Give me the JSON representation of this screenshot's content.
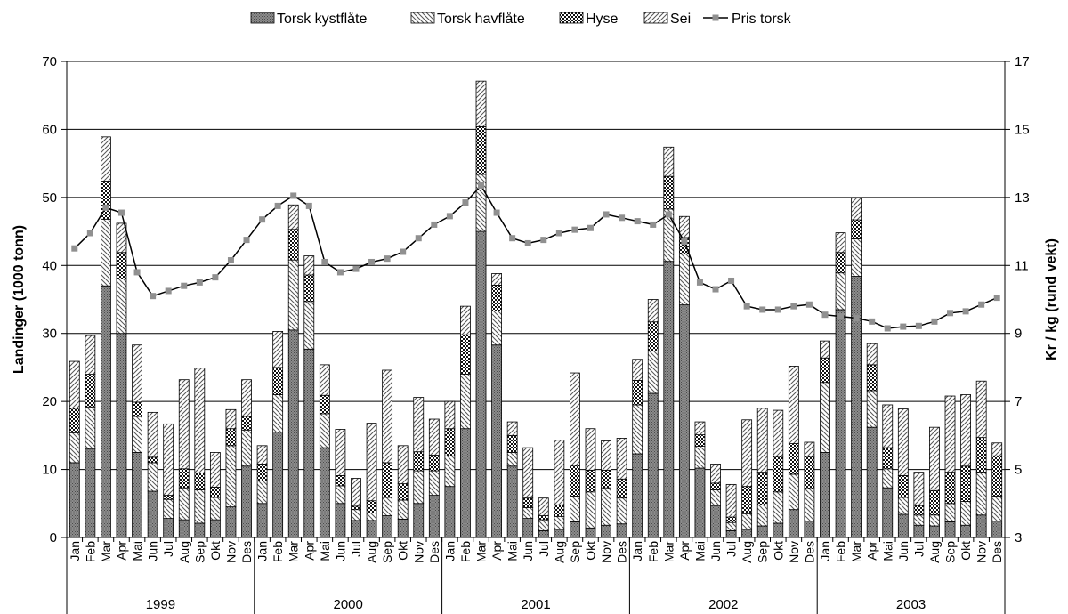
{
  "chart_data": {
    "type": "bar",
    "stacked": true,
    "title": "",
    "ylabel": "Landinger (1000 tonn)",
    "y2label": "Kr / kg (rund vekt)",
    "ylim": [
      0,
      70
    ],
    "y2lim": [
      3,
      17
    ],
    "yticks": [
      "0",
      "10",
      "20",
      "30",
      "40",
      "50",
      "60",
      "70"
    ],
    "y2ticks": [
      "3",
      "5",
      "7",
      "9",
      "11",
      "13",
      "15",
      "17"
    ],
    "grid": true,
    "legend_position": "top",
    "years": [
      "1999",
      "2000",
      "2001",
      "2002",
      "2003"
    ],
    "months": [
      "Jan",
      "Feb",
      "Mar",
      "Apr",
      "Mai",
      "Jun",
      "Jul",
      "Aug",
      "Sep",
      "Okt",
      "Nov",
      "Des"
    ],
    "series": [
      {
        "name": "Torsk kystflåte",
        "pattern": "dots",
        "values": [
          11,
          13,
          37,
          30,
          12.5,
          6.8,
          2.8,
          2.6,
          2.1,
          2.6,
          4.5,
          10.5,
          5,
          15.5,
          30.5,
          27.7,
          13.2,
          5,
          2.5,
          2.5,
          3.2,
          2.7,
          5,
          6.2,
          7.5,
          16,
          45,
          28.3,
          10.5,
          2.8,
          1,
          1.2,
          2.3,
          1.4,
          1.8,
          2,
          12.3,
          21.2,
          40.6,
          34.2,
          10.2,
          4.7,
          1,
          1.2,
          1.7,
          2.1,
          4.1,
          2.4,
          12.5,
          33.5,
          38.4,
          16.2,
          7.3,
          3.4,
          1.8,
          1.7,
          2.3,
          1.8,
          3.3,
          2.4
        ]
      },
      {
        "name": "Torsk havflåte",
        "pattern": "hatch-down",
        "values": [
          4.4,
          6.2,
          9.8,
          8,
          5.3,
          4.2,
          2.8,
          4.7,
          4.9,
          3.3,
          9,
          5.3,
          3.3,
          5.5,
          10.3,
          7,
          5,
          2.6,
          1.6,
          1.1,
          2.7,
          2.8,
          4.8,
          3.6,
          4.5,
          8,
          8.4,
          5,
          2,
          1.6,
          1.6,
          1.9,
          3.8,
          5.3,
          5.5,
          3.8,
          7.2,
          6.2,
          7.7,
          7.5,
          3.2,
          2.3,
          1.2,
          2.3,
          3.1,
          4.6,
          5.2,
          4.8,
          10.3,
          5.4,
          5.5,
          5.4,
          2.8,
          2.5,
          1.5,
          1.6,
          2.7,
          3.5,
          6.3,
          3.7
        ]
      },
      {
        "name": "Hyse",
        "pattern": "checker",
        "values": [
          3.6,
          4.8,
          5.6,
          3.9,
          2.1,
          0.8,
          0.6,
          2.8,
          2.5,
          1.5,
          2.5,
          2,
          2.5,
          4,
          4.5,
          3.9,
          2.7,
          1.5,
          0.5,
          1.8,
          5.1,
          2.4,
          2.8,
          2.3,
          4,
          5.8,
          7,
          3.8,
          2.5,
          1.4,
          0.6,
          1.7,
          4.5,
          3.2,
          2.6,
          2.8,
          3.6,
          4.3,
          4.8,
          2.4,
          1.7,
          1,
          0.8,
          4,
          4.8,
          5.2,
          4.5,
          4.7,
          3.6,
          3,
          2.8,
          3.8,
          3.1,
          3.2,
          1.4,
          3.6,
          4.6,
          5.2,
          5.1,
          5.9
        ]
      },
      {
        "name": "Sei",
        "pattern": "hatch-up",
        "values": [
          6.9,
          5.7,
          6.5,
          4.3,
          8.4,
          6.6,
          10.5,
          13.1,
          15.4,
          5.1,
          2.8,
          5.4,
          2.7,
          5.3,
          3.6,
          2.8,
          4.5,
          6.8,
          4.1,
          11.4,
          13.6,
          5.6,
          8,
          5.3,
          4,
          4.2,
          6.7,
          1.7,
          2,
          7.4,
          2.6,
          9.5,
          13.6,
          6.1,
          4.3,
          6,
          3.1,
          3.3,
          4.3,
          3.1,
          1.9,
          2.8,
          4.8,
          9.8,
          9.4,
          6.8,
          11.4,
          2.1,
          2.5,
          2.9,
          3.2,
          3.1,
          6.3,
          9.8,
          4.9,
          9.3,
          11.2,
          10.5,
          8.3,
          1.9
        ]
      },
      {
        "name": "Pris torsk",
        "marker": "square",
        "line": true,
        "values": [
          11.5,
          11.95,
          12.7,
          12.55,
          10.8,
          10.1,
          10.25,
          10.4,
          10.5,
          10.65,
          11.15,
          11.75,
          12.35,
          12.75,
          13.05,
          12.75,
          11.1,
          10.8,
          10.9,
          11.1,
          11.2,
          11.4,
          11.8,
          12.2,
          12.45,
          12.85,
          13.35,
          12.55,
          11.8,
          11.65,
          11.75,
          11.95,
          12.05,
          12.1,
          12.5,
          12.4,
          12.3,
          12.2,
          12.5,
          11.7,
          10.5,
          10.3,
          10.55,
          9.8,
          9.7,
          9.7,
          9.8,
          9.85,
          9.55,
          9.5,
          9.45,
          9.35,
          9.15,
          9.2,
          9.22,
          9.35,
          9.6,
          9.65,
          9.85,
          10.05
        ]
      }
    ]
  }
}
